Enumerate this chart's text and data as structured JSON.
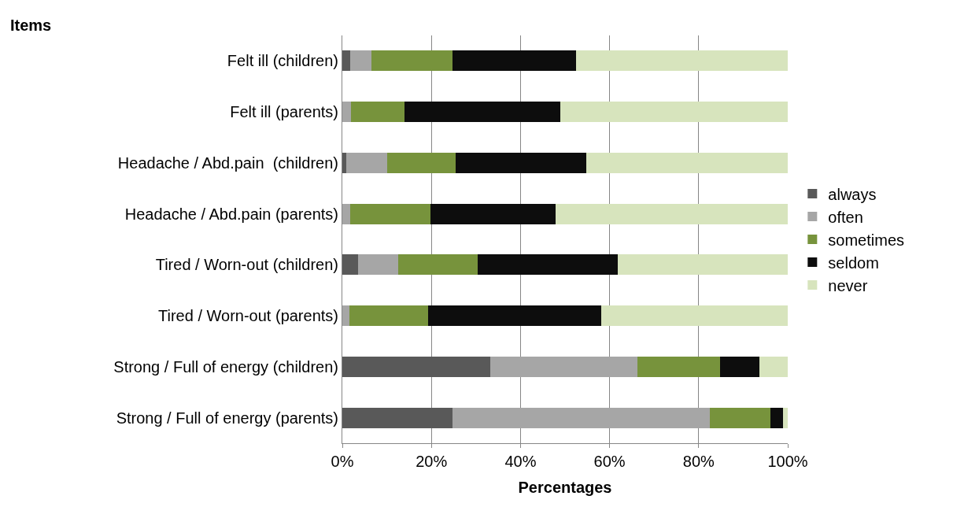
{
  "chart_data": {
    "type": "bar",
    "orientation": "horizontal",
    "stacked": true,
    "xlabel": "Percentages",
    "ylabel": "Items",
    "categories": [
      "Felt ill (children)",
      "Felt ill (parents)",
      "Headache / Abd.pain  (children)",
      "Headache / Abd.pain (parents)",
      "Tired / Worn-out (children)",
      "Tired / Worn-out (parents)",
      "Strong / Full of energy (children)",
      "Strong / Full of energy (parents)"
    ],
    "series": [
      {
        "name": "always",
        "color": "#595959",
        "values": [
          1.8,
          0,
          0.9,
          0,
          3.6,
          0,
          33.2,
          24.7
        ]
      },
      {
        "name": "often",
        "color": "#a6a6a6",
        "values": [
          4.8,
          2.0,
          9.1,
          1.8,
          9.0,
          1.6,
          33.0,
          57.8
        ]
      },
      {
        "name": "sometimes",
        "color": "#77933c",
        "values": [
          18.2,
          12.0,
          15.4,
          17.9,
          17.7,
          17.6,
          18.6,
          13.6
        ]
      },
      {
        "name": "seldom",
        "color": "#0d0d0d",
        "values": [
          27.6,
          35.0,
          29.3,
          28.1,
          31.6,
          39.0,
          8.9,
          2.9
        ]
      },
      {
        "name": "never",
        "color": "#d7e4bd",
        "values": [
          47.6,
          51.0,
          45.3,
          52.2,
          38.1,
          41.8,
          6.3,
          1.0
        ]
      }
    ],
    "xlim": [
      0,
      100
    ],
    "xticks": [
      {
        "value": 0,
        "label": "0%"
      },
      {
        "value": 20,
        "label": "20%"
      },
      {
        "value": 40,
        "label": "40%"
      },
      {
        "value": 60,
        "label": "60%"
      },
      {
        "value": 80,
        "label": "80%"
      },
      {
        "value": 100,
        "label": "100%"
      }
    ],
    "grid": "x",
    "legend": "right"
  }
}
